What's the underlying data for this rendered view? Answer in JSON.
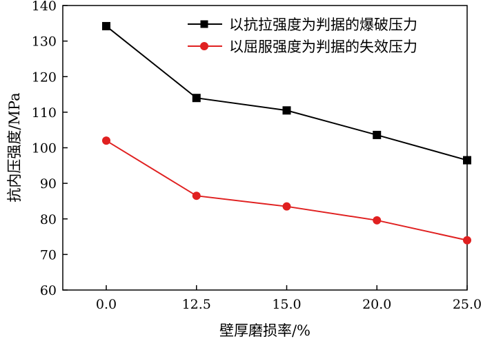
{
  "chart_data": {
    "type": "line",
    "x": [
      "0.0",
      "12.5",
      "15.0",
      "20.0",
      "25.0"
    ],
    "xlabel": "壁厚磨损率/%",
    "ylabel": "抗内压强度/MPa",
    "ylim": [
      60,
      140
    ],
    "yticks": [
      "60",
      "70",
      "80",
      "90",
      "100",
      "110",
      "120",
      "130",
      "140"
    ],
    "grid": false,
    "legend_position": "top-right",
    "series": [
      {
        "name": "以抗拉强度为判据的爆破压力",
        "color": "#000000",
        "marker": "square",
        "values": [
          134.2,
          114.0,
          110.5,
          103.6,
          96.5
        ]
      },
      {
        "name": "以屈服强度为判据的失效压力",
        "color": "#e02020",
        "marker": "circle",
        "values": [
          102.0,
          86.5,
          83.5,
          79.6,
          74.0
        ]
      }
    ]
  }
}
